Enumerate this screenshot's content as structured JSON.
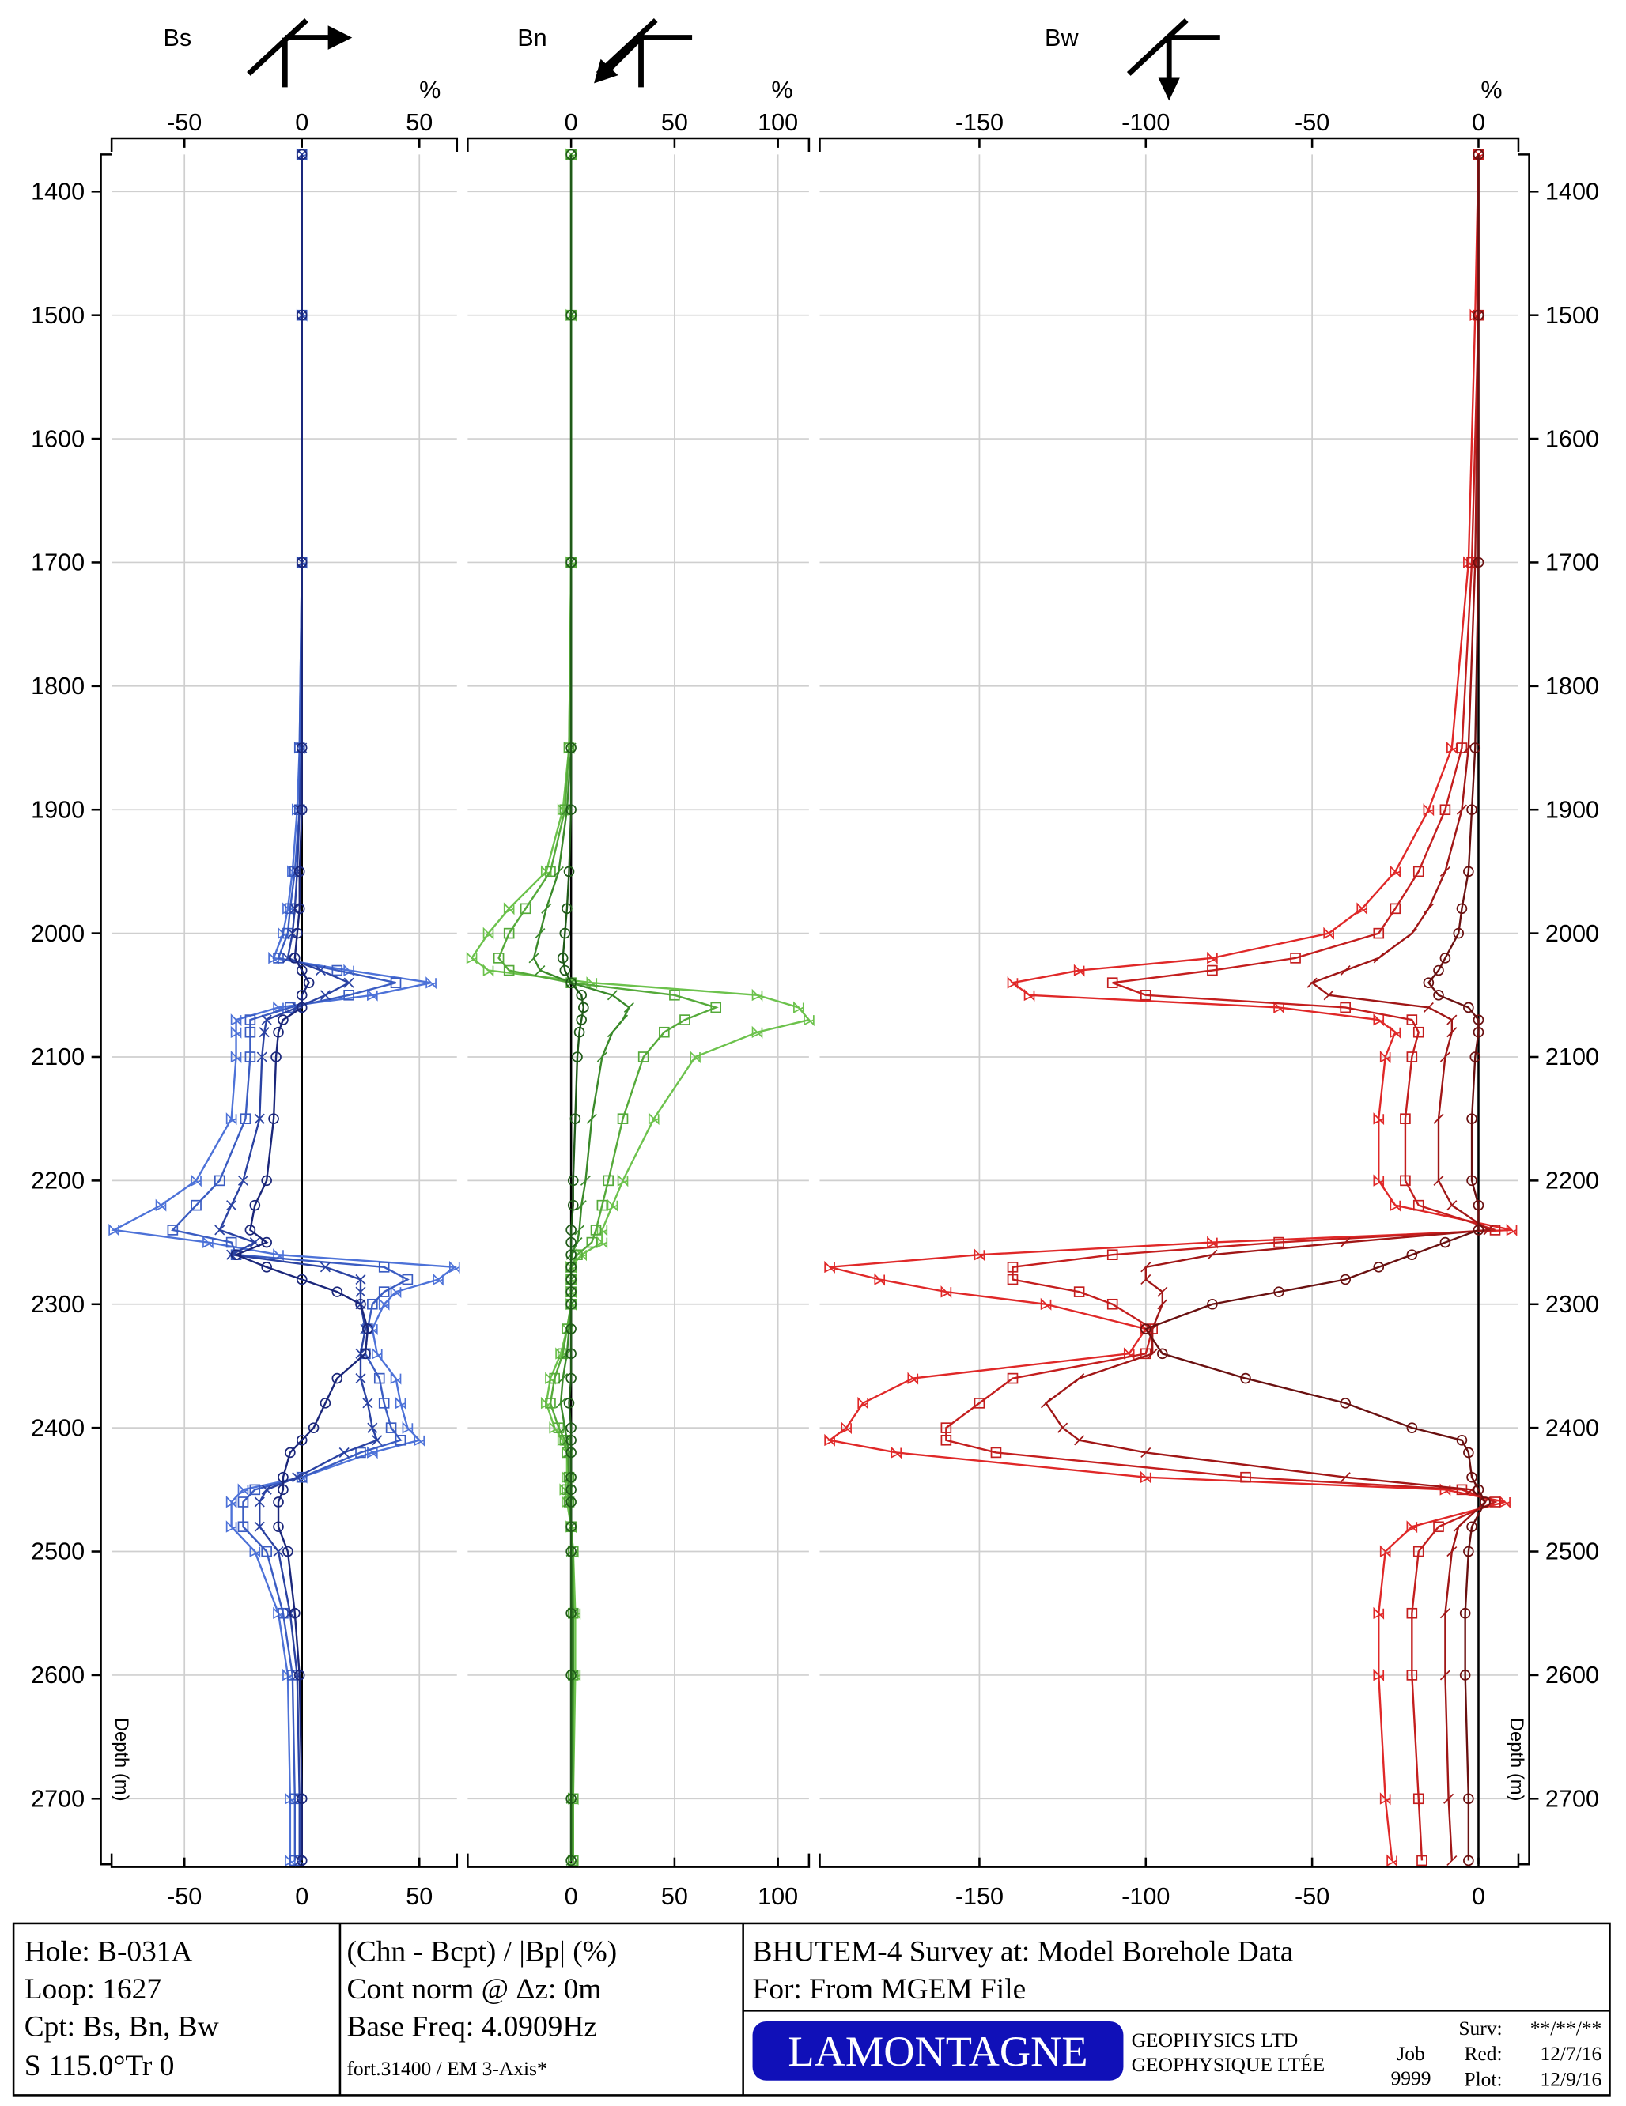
{
  "chart_data": [
    {
      "type": "line",
      "title": "Bs",
      "x_unit": "%",
      "ylabel": "Depth (m)",
      "yaxis_reversed": true,
      "grid": true,
      "xlim": [
        -81,
        66
      ],
      "xticks": [
        -50,
        0,
        50
      ],
      "ylim": [
        1370,
        2753
      ],
      "yticks": [
        1400,
        1500,
        1600,
        1700,
        1800,
        1900,
        2000,
        2100,
        2200,
        2300,
        2400,
        2500,
        2600,
        2700
      ],
      "y": [
        1370,
        1500,
        1700,
        1850,
        1900,
        1950,
        1980,
        2000,
        2020,
        2030,
        2040,
        2050,
        2060,
        2070,
        2080,
        2100,
        2150,
        2200,
        2220,
        2240,
        2250,
        2260,
        2270,
        2280,
        2290,
        2300,
        2320,
        2340,
        2360,
        2380,
        2400,
        2410,
        2420,
        2440,
        2450,
        2460,
        2480,
        2500,
        2550,
        2600,
        2700,
        2750
      ],
      "series": [
        {
          "color": "#4d72d8",
          "marker": "triangle",
          "values": [
            0,
            0,
            0,
            -1,
            -2,
            -4,
            -6,
            -8,
            -12,
            20,
            55,
            30,
            -10,
            -28,
            -28,
            -28,
            -30,
            -45,
            -60,
            -80,
            -40,
            -10,
            65,
            58,
            40,
            35,
            30,
            32,
            40,
            42,
            45,
            50,
            30,
            0,
            -25,
            -30,
            -30,
            -20,
            -10,
            -6,
            -5,
            -5
          ]
        },
        {
          "color": "#3a5cc2",
          "marker": "square",
          "values": [
            0,
            0,
            0,
            -1,
            -1,
            -3,
            -5,
            -6,
            -10,
            15,
            40,
            20,
            -5,
            -22,
            -22,
            -22,
            -24,
            -35,
            -45,
            -55,
            -30,
            -28,
            35,
            45,
            35,
            30,
            28,
            27,
            33,
            35,
            38,
            42,
            25,
            0,
            -20,
            -25,
            -25,
            -15,
            -8,
            -4,
            -3,
            -3
          ]
        },
        {
          "color": "#2a42a2",
          "marker": "cross",
          "values": [
            0,
            0,
            0,
            0,
            -1,
            -2,
            -3,
            -4,
            -6,
            8,
            20,
            10,
            -2,
            -15,
            -16,
            -17,
            -18,
            -25,
            -30,
            -35,
            -20,
            -30,
            10,
            25,
            25,
            25,
            27,
            25,
            25,
            28,
            30,
            32,
            18,
            -2,
            -15,
            -18,
            -18,
            -10,
            -5,
            -2,
            -1,
            -1
          ]
        },
        {
          "color": "#1a267a",
          "marker": "circle",
          "values": [
            0,
            0,
            0,
            0,
            0,
            -1,
            -1,
            -2,
            -3,
            0,
            3,
            0,
            0,
            -8,
            -10,
            -11,
            -12,
            -15,
            -20,
            -22,
            -15,
            -28,
            -15,
            0,
            15,
            25,
            28,
            27,
            15,
            10,
            5,
            0,
            -5,
            -8,
            -8,
            -10,
            -10,
            -6,
            -3,
            -1,
            0,
            0
          ]
        }
      ]
    },
    {
      "type": "line",
      "title": "Bn",
      "x_unit": "%",
      "yaxis_reversed": true,
      "grid": true,
      "xlim": [
        -50,
        115
      ],
      "xticks": [
        0,
        50,
        100
      ],
      "ylim": [
        1370,
        2753
      ],
      "yticks": [
        1400,
        1500,
        1600,
        1700,
        1800,
        1900,
        2000,
        2100,
        2200,
        2300,
        2400,
        2500,
        2600,
        2700
      ],
      "y": [
        1370,
        1500,
        1700,
        1850,
        1900,
        1950,
        1980,
        2000,
        2020,
        2030,
        2040,
        2050,
        2060,
        2070,
        2080,
        2100,
        2150,
        2200,
        2220,
        2240,
        2250,
        2260,
        2270,
        2280,
        2290,
        2300,
        2320,
        2340,
        2360,
        2380,
        2400,
        2410,
        2420,
        2440,
        2450,
        2460,
        2480,
        2500,
        2550,
        2600,
        2700,
        2750
      ],
      "series": [
        {
          "color": "#6cc24c",
          "marker": "triangle",
          "values": [
            0,
            0,
            0,
            -1,
            -4,
            -12,
            -30,
            -40,
            -48,
            -40,
            10,
            90,
            110,
            115,
            90,
            60,
            40,
            25,
            20,
            15,
            15,
            5,
            0,
            0,
            0,
            0,
            -2,
            -5,
            -10,
            -12,
            -8,
            -4,
            -2,
            -2,
            -3,
            -2,
            0,
            1,
            2,
            2,
            1,
            1
          ]
        },
        {
          "color": "#55aa3a",
          "marker": "square",
          "values": [
            0,
            0,
            0,
            -1,
            -3,
            -10,
            -22,
            -30,
            -35,
            -30,
            0,
            50,
            70,
            55,
            45,
            35,
            25,
            18,
            15,
            12,
            10,
            3,
            0,
            0,
            0,
            0,
            -2,
            -4,
            -8,
            -10,
            -6,
            -3,
            -2,
            -1,
            -2,
            -1,
            0,
            1,
            1,
            1,
            1,
            1
          ]
        },
        {
          "color": "#3a8a2a",
          "marker": "tick",
          "values": [
            0,
            0,
            0,
            0,
            -2,
            -6,
            -12,
            -15,
            -18,
            -15,
            0,
            20,
            28,
            25,
            20,
            15,
            10,
            7,
            5,
            4,
            3,
            0,
            0,
            0,
            0,
            0,
            -1,
            -2,
            -4,
            -5,
            -3,
            -2,
            -1,
            -1,
            -1,
            -1,
            0,
            0,
            1,
            1,
            0,
            0
          ]
        },
        {
          "color": "#1f5a18",
          "marker": "circle",
          "values": [
            0,
            0,
            0,
            0,
            0,
            -1,
            -2,
            -3,
            -4,
            -3,
            0,
            5,
            6,
            5,
            4,
            3,
            2,
            1,
            1,
            0,
            0,
            0,
            0,
            0,
            0,
            0,
            0,
            0,
            0,
            -1,
            0,
            0,
            0,
            0,
            0,
            0,
            0,
            0,
            0,
            0,
            0,
            0
          ]
        }
      ]
    },
    {
      "type": "line",
      "title": "Bw",
      "x_unit": "%",
      "ylabel": "Depth (m)",
      "yaxis_reversed": true,
      "grid": true,
      "xlim": [
        -198,
        12
      ],
      "xticks": [
        -150,
        -100,
        -50,
        0
      ],
      "ylim": [
        1370,
        2753
      ],
      "yticks": [
        1400,
        1500,
        1600,
        1700,
        1800,
        1900,
        2000,
        2100,
        2200,
        2300,
        2400,
        2500,
        2600,
        2700
      ],
      "y": [
        1370,
        1500,
        1700,
        1850,
        1900,
        1950,
        1980,
        2000,
        2020,
        2030,
        2040,
        2050,
        2060,
        2070,
        2080,
        2100,
        2150,
        2200,
        2220,
        2240,
        2250,
        2260,
        2270,
        2280,
        2290,
        2300,
        2320,
        2340,
        2360,
        2380,
        2400,
        2410,
        2420,
        2440,
        2450,
        2460,
        2480,
        2500,
        2550,
        2600,
        2700,
        2750
      ],
      "series": [
        {
          "color": "#e02828",
          "marker": "triangle",
          "values": [
            0,
            -1,
            -3,
            -8,
            -15,
            -25,
            -35,
            -45,
            -80,
            -120,
            -140,
            -135,
            -60,
            -30,
            -25,
            -28,
            -30,
            -30,
            -25,
            10,
            -80,
            -150,
            -195,
            -180,
            -160,
            -130,
            -100,
            -105,
            -170,
            -185,
            -190,
            -195,
            -175,
            -100,
            -10,
            8,
            -20,
            -28,
            -30,
            -30,
            -28,
            -26
          ]
        },
        {
          "color": "#c41e1e",
          "marker": "square",
          "values": [
            0,
            0,
            -2,
            -5,
            -10,
            -18,
            -25,
            -30,
            -55,
            -80,
            -110,
            -100,
            -40,
            -20,
            -18,
            -20,
            -22,
            -22,
            -18,
            5,
            -60,
            -110,
            -140,
            -140,
            -120,
            -110,
            -98,
            -100,
            -140,
            -150,
            -160,
            -160,
            -145,
            -70,
            -5,
            5,
            -12,
            -18,
            -20,
            -20,
            -18,
            -17
          ]
        },
        {
          "color": "#a01616",
          "marker": "tick",
          "values": [
            0,
            0,
            -1,
            -3,
            -5,
            -10,
            -15,
            -20,
            -30,
            -40,
            -50,
            -45,
            -15,
            -8,
            -8,
            -10,
            -12,
            -12,
            -8,
            3,
            -40,
            -80,
            -100,
            -100,
            -95,
            -95,
            -98,
            -98,
            -120,
            -130,
            -125,
            -120,
            -100,
            -40,
            -2,
            2,
            -6,
            -8,
            -10,
            -10,
            -9,
            -8
          ]
        },
        {
          "color": "#6a1010",
          "marker": "circle",
          "values": [
            0,
            0,
            0,
            -1,
            -2,
            -3,
            -5,
            -6,
            -10,
            -12,
            -15,
            -12,
            -3,
            0,
            0,
            -1,
            -2,
            -2,
            0,
            0,
            -10,
            -20,
            -30,
            -40,
            -60,
            -80,
            -100,
            -95,
            -70,
            -40,
            -20,
            -5,
            -3,
            -2,
            0,
            2,
            -2,
            -3,
            -4,
            -4,
            -3,
            -3
          ]
        }
      ]
    }
  ],
  "footer": {
    "hole": "Hole: B-031A",
    "loop": "Loop: 1627",
    "cpt": "Cpt:  Bs, Bn, Bw",
    "station": "S 115.0°Tr 0",
    "formula": "(Chn - Bcpt) / |Bp| (%)",
    "norm": "Cont norm @ Δz: 0m",
    "freq": "Base Freq: 4.0909Hz",
    "file": "fort.31400 / EM 3-Axis*",
    "survey": "BHUTEM-4 Survey at:  Model Borehole Data",
    "for": "For:  From MGEM File",
    "logo": "LAMONTAGNE",
    "company_en": "GEOPHYSICS LTD",
    "company_fr": "GEOPHYSIQUE LTÉE",
    "job_label": "Job",
    "job": "9999",
    "surv_label": "Surv:",
    "surv": "**/**/**",
    "red_label": "Red:",
    "red": "12/7/16",
    "plot_label": "Plot:",
    "plot": "12/9/16"
  }
}
